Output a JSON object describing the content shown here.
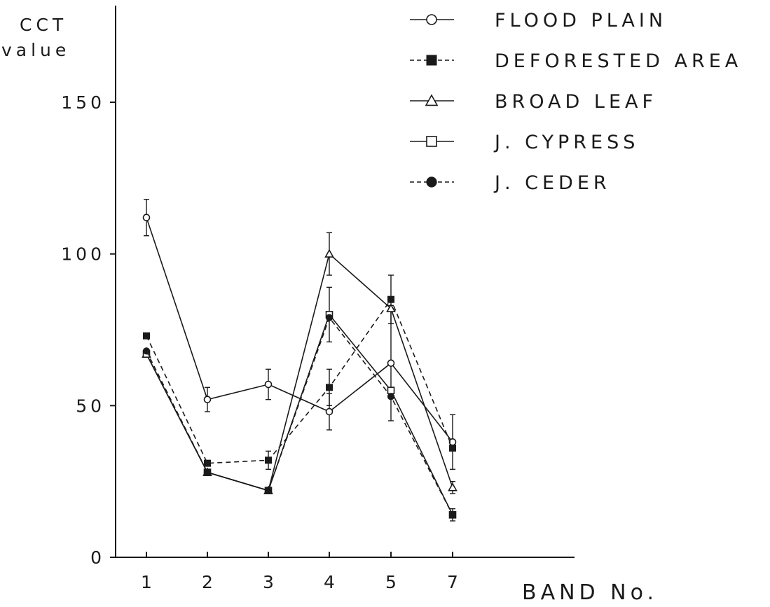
{
  "chart_data": {
    "type": "line",
    "title": "",
    "ylabel_lines": [
      "CCT",
      "value"
    ],
    "xlabel": "BAND No.",
    "categories": [
      "1",
      "2",
      "3",
      "4",
      "5",
      "7"
    ],
    "yticks": [
      "0",
      "50",
      "100",
      "150"
    ],
    "ylim": [
      0,
      150
    ],
    "grid": false,
    "legend_position": "top-right",
    "series": [
      {
        "name": "FLOOD PLAIN",
        "values": [
          112,
          52,
          57,
          48,
          64,
          38
        ],
        "error": [
          6,
          4,
          5,
          6,
          19,
          9
        ],
        "marker": "circle-open",
        "line": "solid"
      },
      {
        "name": "DEFORESTED AREA",
        "values": [
          73,
          31,
          32,
          56,
          85,
          36
        ],
        "error": [
          0,
          0,
          3,
          6,
          8,
          0
        ],
        "marker": "square-filled",
        "line": "dashed"
      },
      {
        "name": "BROAD LEAF",
        "values": [
          67,
          28,
          22,
          100,
          82,
          23
        ],
        "error": [
          0,
          0,
          0,
          7,
          0,
          2
        ],
        "marker": "triangle-open",
        "line": "solid"
      },
      {
        "name": "J. CYPRESS",
        "values": [
          67,
          28,
          22,
          80,
          55,
          14
        ],
        "error": [
          0,
          0,
          0,
          9,
          0,
          2
        ],
        "marker": "square-open",
        "line": "solid"
      },
      {
        "name": "J. CEDER",
        "values": [
          68,
          28,
          22,
          79,
          53,
          14
        ],
        "error": [
          0,
          0,
          0,
          0,
          0,
          0
        ],
        "marker": "circle-filled",
        "line": "dashed"
      }
    ]
  }
}
